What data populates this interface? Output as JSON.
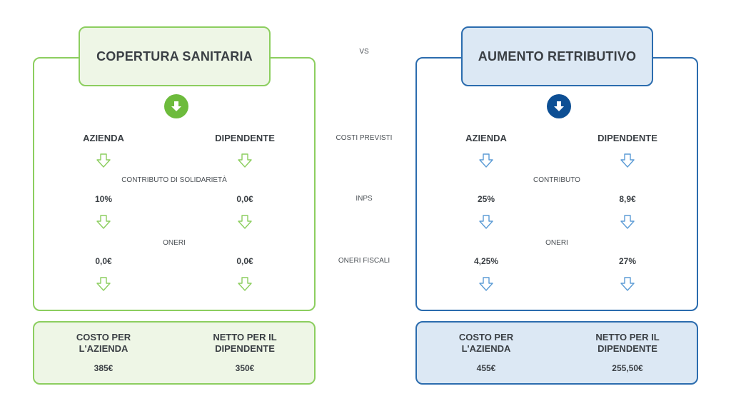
{
  "colors": {
    "green_border": "#8cce5f",
    "green_fill": "#eef6e6",
    "green_icon": "#6dbb3c",
    "blue_border": "#2b6cae",
    "blue_fill": "#dce8f4",
    "blue_icon": "#0d4f94",
    "blue_arrow": "#5b9bd5",
    "green_arrow": "#8cce5f"
  },
  "vs_label": "VS",
  "middle": {
    "costi_previsti": "COSTI PREVISTI",
    "inps": "INPS",
    "oneri_fiscali": "ONERI FISCALI"
  },
  "left": {
    "title": "COPERTURA SANITARIA",
    "col_azienda": "AZIENDA",
    "col_dipendente": "DIPENDENTE",
    "row1_label": "CONTRIBUTO DI SOLIDARIETÀ",
    "row1_azienda": "10%",
    "row1_dipendente": "0,0€",
    "row2_label": "ONERI",
    "row2_azienda": "0,0€",
    "row2_dipendente": "0,0€",
    "summary": {
      "cost_label": "COSTO PER L'AZIENDA",
      "cost_value": "385€",
      "net_label": "NETTO PER IL DIPENDENTE",
      "net_value": "350€"
    }
  },
  "right": {
    "title": "AUMENTO RETRIBUTIVO",
    "col_azienda": "AZIENDA",
    "col_dipendente": "DIPENDENTE",
    "row1_label": "CONTRIBUTO",
    "row1_azienda": "25%",
    "row1_dipendente": "8,9€",
    "row2_label": "ONERI",
    "row2_azienda": "4,25%",
    "row2_dipendente": "27%",
    "summary": {
      "cost_label": "COSTO PER L'AZIENDA",
      "cost_value": "455€",
      "net_label": "NETTO PER IL DIPENDENTE",
      "net_value": "255,50€"
    }
  }
}
